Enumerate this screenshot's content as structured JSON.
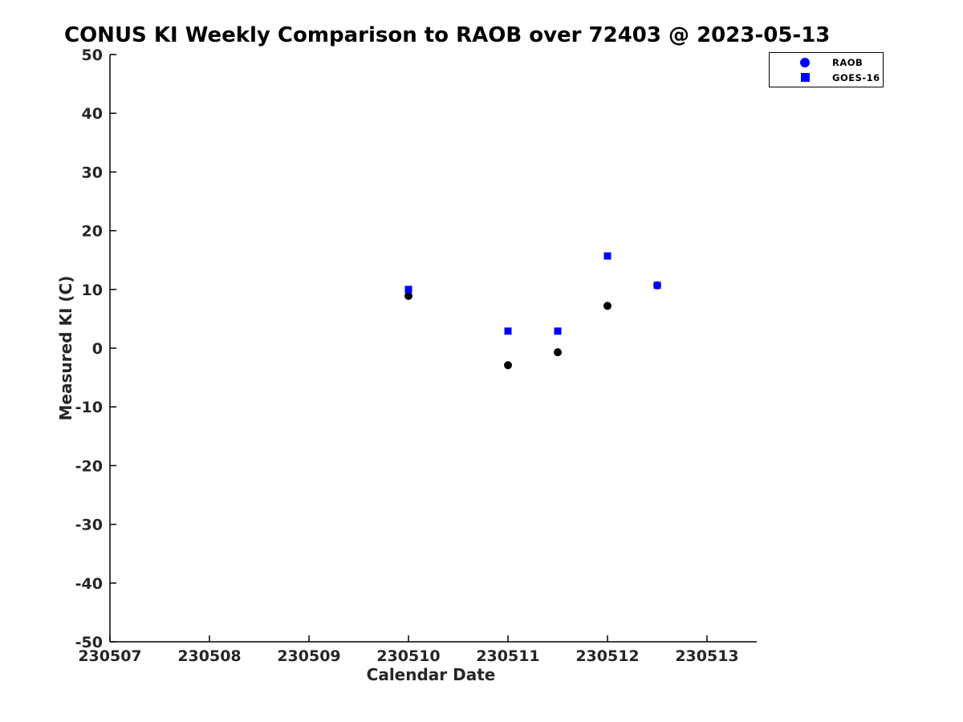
{
  "title": "CONUS KI Weekly Comparison to RAOB over 72403 @ 2023-05-13",
  "colors": {
    "accent_blue": "#0000ff",
    "marker_black": "#000000",
    "axis_black": "#000000"
  },
  "legend": {
    "entries": [
      {
        "label": "RAOB",
        "marker": "circle",
        "marker_color": "#0000ff"
      },
      {
        "label": "GOES-16",
        "marker": "square",
        "marker_color": "#0000ff"
      }
    ],
    "position": "upper-right-outside"
  },
  "chart_data": {
    "type": "scatter",
    "title": "CONUS KI Weekly Comparison to RAOB over 72403 @ 2023-05-13",
    "xlabel": "Calendar Date",
    "ylabel": "Measured KI (C)",
    "xlim": [
      230507,
      230513.5
    ],
    "ylim": [
      -50,
      50
    ],
    "x_ticks": [
      230507,
      230508,
      230509,
      230510,
      230511,
      230512,
      230513
    ],
    "x_tick_labels": [
      "230507",
      "230508",
      "230509",
      "230510",
      "230511",
      "230512",
      "230513"
    ],
    "y_ticks": [
      -50,
      -40,
      -30,
      -20,
      -10,
      0,
      10,
      20,
      30,
      40,
      50
    ],
    "y_tick_labels": [
      "-50",
      "-40",
      "-30",
      "-20",
      "-10",
      "0",
      "10",
      "20",
      "30",
      "40",
      "50"
    ],
    "grid": false,
    "legend_position": "upper right",
    "series": [
      {
        "name": "RAOB",
        "marker": "circle",
        "color": "#000000",
        "legend_marker_color": "#0000ff",
        "x": [
          230510,
          230511,
          230511.5,
          230512,
          230512.5
        ],
        "y": [
          8.9,
          -2.9,
          -0.7,
          7.2,
          10.7
        ]
      },
      {
        "name": "GOES-16",
        "marker": "square",
        "color": "#0000ff",
        "legend_marker_color": "#0000ff",
        "x": [
          230510,
          230511,
          230511.5,
          230512,
          230512.5
        ],
        "y": [
          10.0,
          2.9,
          2.9,
          15.7,
          10.7
        ]
      }
    ]
  }
}
